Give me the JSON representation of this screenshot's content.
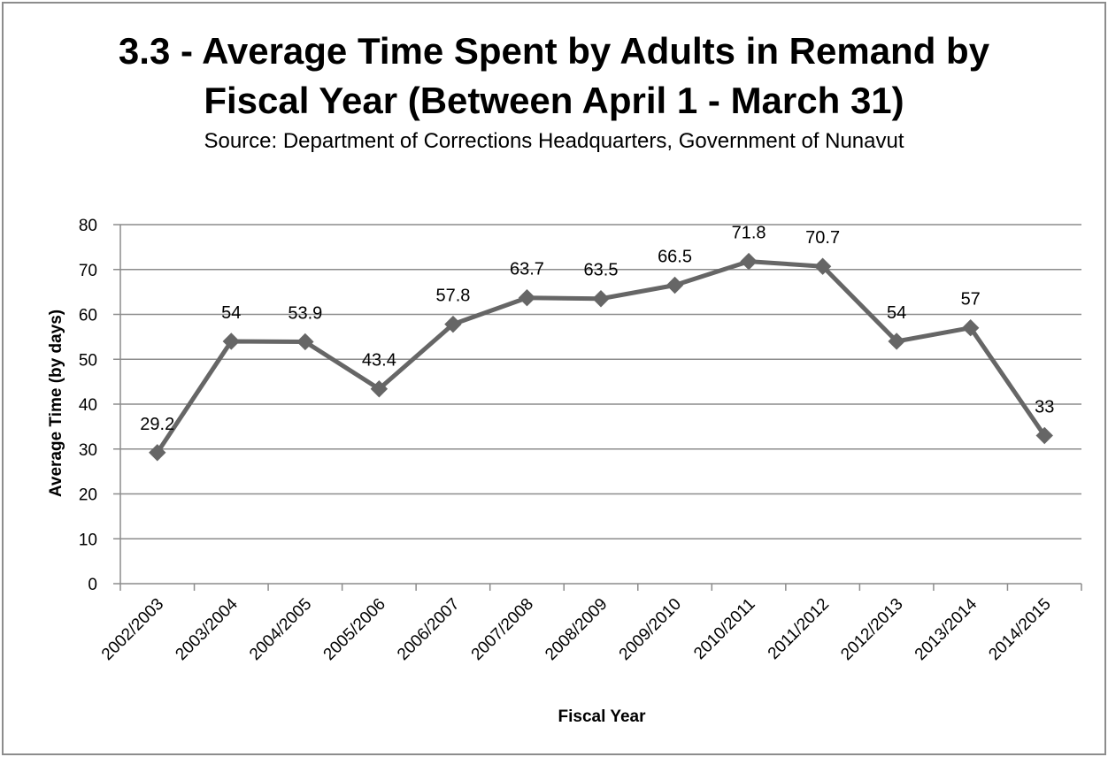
{
  "chart_data": {
    "type": "line",
    "title_lines": [
      "3.3 - Average Time Spent by Adults in Remand by",
      "Fiscal Year (Between April 1 - March 31)"
    ],
    "subtitle": "Source: Department of Corrections Headquarters, Government of Nunavut",
    "xlabel": "Fiscal Year",
    "ylabel": "Average Time (by days)",
    "ylim": [
      0,
      80
    ],
    "yticks": [
      0,
      10,
      20,
      30,
      40,
      50,
      60,
      70,
      80
    ],
    "grid": true,
    "legend": "none",
    "categories": [
      "2002/2003",
      "2003/2004",
      "2004/2005",
      "2005/2006",
      "2006/2007",
      "2007/2008",
      "2008/2009",
      "2009/2010",
      "2010/2011",
      "2011/2012",
      "2012/2013",
      "2013/2014",
      "2014/2015"
    ],
    "values": [
      29.2,
      54,
      53.9,
      43.4,
      57.8,
      63.7,
      63.5,
      66.5,
      71.8,
      70.7,
      54,
      57,
      33
    ],
    "labels": [
      "29.2",
      "54",
      "53.9",
      "43.4",
      "57.8",
      "63.7",
      "63.5",
      "66.5",
      "71.8",
      "70.7",
      "54",
      "57",
      "33"
    ],
    "colors": {
      "series": "#666666",
      "grid": "#8c8c8c",
      "axis": "#8c8c8c"
    }
  }
}
